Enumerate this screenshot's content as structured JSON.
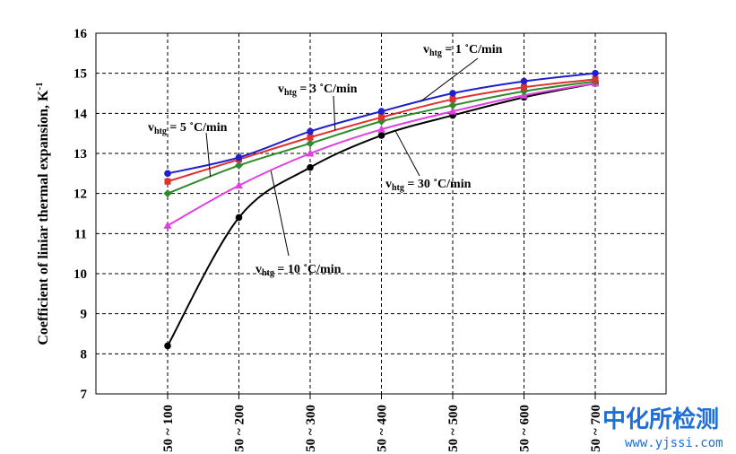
{
  "chart_data": {
    "type": "line",
    "categories": [
      "50 ~ 100",
      "50 ~ 200",
      "50 ~ 300",
      "50 ~ 400",
      "50 ~ 500",
      "50 ~ 600",
      "50 ~ 700"
    ],
    "ylabel": "Coefficient of liniar thermal expansion, K-1",
    "ylim": [
      7,
      16
    ],
    "yticks": [
      7,
      8,
      9,
      10,
      11,
      12,
      13,
      14,
      15,
      16
    ],
    "grid": true,
    "series": [
      {
        "name": "vhtg = 1 °C/min",
        "color": "#1f1fcc",
        "marker": "circle",
        "values": [
          12.5,
          12.9,
          13.55,
          14.05,
          14.5,
          14.8,
          15.0
        ]
      },
      {
        "name": "vhtg = 3 °C/min",
        "color": "#e03030",
        "marker": "square",
        "values": [
          12.3,
          12.85,
          13.4,
          13.9,
          14.35,
          14.65,
          14.85
        ]
      },
      {
        "name": "vhtg = 5 °C/min",
        "color": "#2e8b2e",
        "marker": "diamond",
        "values": [
          12.0,
          12.7,
          13.25,
          13.8,
          14.2,
          14.55,
          14.8
        ]
      },
      {
        "name": "vhtg = 10 °C/min",
        "color": "#e040e0",
        "marker": "triangle",
        "values": [
          11.2,
          12.2,
          13.0,
          13.6,
          14.05,
          14.45,
          14.75
        ]
      },
      {
        "name": "vhtg = 30 °C/min",
        "color": "#000000",
        "marker": "circle",
        "values": [
          8.2,
          11.4,
          12.65,
          13.45,
          13.95,
          14.4,
          14.75
        ]
      }
    ],
    "annotations": [
      {
        "base": "v",
        "sub": "htg",
        "rest": " = 1 ˚C/min"
      },
      {
        "base": "v",
        "sub": "htg",
        "rest": " = 3 ˚C/min"
      },
      {
        "base": "v",
        "sub": "htg",
        "rest": " = 5 ˚C/min"
      },
      {
        "base": "v",
        "sub": "htg",
        "rest": " = 30 ˚C/min"
      },
      {
        "base": "v",
        "sub": "htg",
        "rest": " = 10 ˚C/min"
      }
    ]
  },
  "watermark": {
    "brand": "中化所检测",
    "url": "www.yjssi.com",
    "color": "#1e6fd8"
  }
}
